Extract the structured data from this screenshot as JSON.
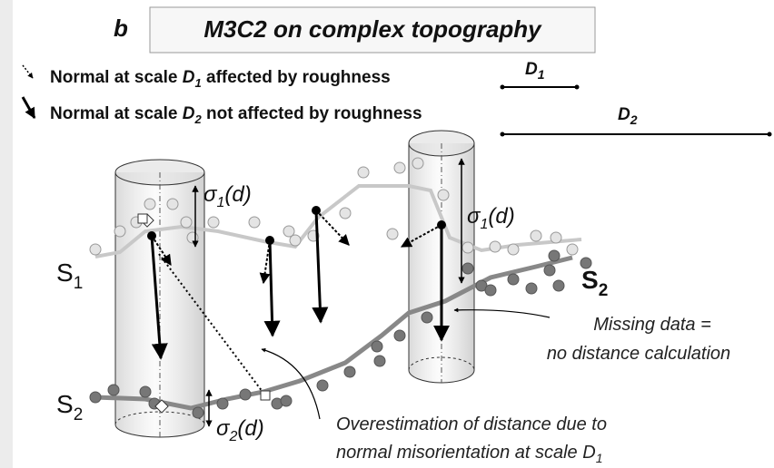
{
  "panel_letter": "b",
  "title": "M3C2 on complex topography",
  "legend": [
    {
      "text": "Normal at scale ",
      "symbol": "D",
      "sub": "1",
      "after": " affected by roughness"
    },
    {
      "text": "Normal at scale ",
      "symbol": "D",
      "sub": "2",
      "after": " not affected by roughness"
    }
  ],
  "scale_bars": [
    {
      "symbol": "D",
      "sub": "1"
    },
    {
      "symbol": "D",
      "sub": "2"
    }
  ],
  "surface_labels": [
    {
      "symbol": "S",
      "sub": "1"
    },
    {
      "symbol": "S",
      "sub": "2"
    },
    {
      "symbol": "S",
      "sub": "2"
    }
  ],
  "sigma_labels": [
    {
      "symbol": "σ",
      "sub": "1",
      "after": "(d)"
    },
    {
      "symbol": "σ",
      "sub": "1",
      "after": "(d)"
    },
    {
      "symbol": "σ",
      "sub": "2",
      "after": "(d)"
    }
  ],
  "annotations": {
    "missing_data": [
      "Missing data =",
      "no distance calculation"
    ],
    "overestimation": {
      "line1": "Overestimation of distance due to",
      "line2": "normal misorientation at scale ",
      "symbol": "D",
      "sub": "1"
    }
  }
}
